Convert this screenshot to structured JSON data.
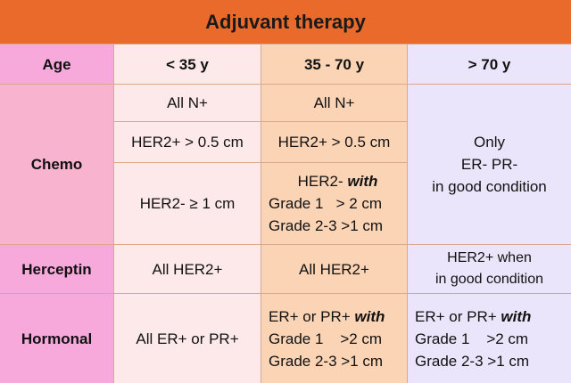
{
  "title": "Adjuvant therapy",
  "header": [
    "Age",
    "< 35 y",
    "35 - 70 y",
    "> 70 y"
  ],
  "chemo": {
    "label": "Chemo",
    "all_n": [
      "All N+",
      "All N+"
    ],
    "her2_pos": [
      "HER2+ > 0.5 cm",
      "HER2+ > 0.5 cm"
    ],
    "her2_neg_young": "HER2- ≥ 1 cm",
    "her2_neg_mid": [
      {
        "text": "HER2-",
        "emphasis": "with"
      },
      {
        "text": "Grade 1   > 2 cm"
      },
      {
        "text": "Grade 2-3 >1 cm"
      }
    ],
    "elderly": [
      "Only",
      "ER- PR-",
      "in good condition"
    ]
  },
  "herceptin": {
    "label": "Herceptin",
    "young": "All HER2+",
    "mid": "All HER2+",
    "elderly": [
      "HER2+ when",
      "in good condition"
    ]
  },
  "hormonal": {
    "label": "Hormonal",
    "young": "All ER+ or PR+",
    "mid": [
      {
        "text": "ER+ or PR+",
        "emphasis": "with"
      },
      {
        "text": "Grade 1    >2 cm"
      },
      {
        "text": "Grade 2-3 >1 cm"
      }
    ],
    "elderly": [
      {
        "text": "ER+ or PR+",
        "emphasis": "with"
      },
      {
        "text": "Grade 1    >2 cm"
      },
      {
        "text": "Grade 2-3 >1 cm"
      }
    ]
  }
}
